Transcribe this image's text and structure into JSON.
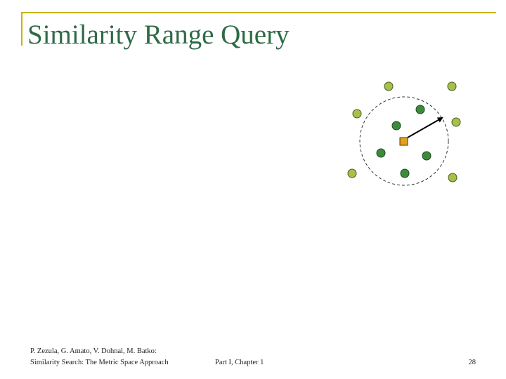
{
  "slide": {
    "title": "Similarity Range Query"
  },
  "footer": {
    "authors": "P. Zezula, G. Amato, V. Dohnal, M. Batko:",
    "book": "Similarity Search: The Metric Space Approach",
    "part": "Part I, Chapter 1",
    "page": "28"
  },
  "diagram": {
    "query_object_shape": "square",
    "range_circle_style": "dashed",
    "radius_arrow": true,
    "colors": {
      "accent_rule": "#c8b400",
      "title": "#2e6b45",
      "outside_point": "#a6c04a",
      "inside_point": "#3d8a3d",
      "query_object": "#e0a020"
    },
    "points_inside_range": 5,
    "points_outside_range": 6
  }
}
